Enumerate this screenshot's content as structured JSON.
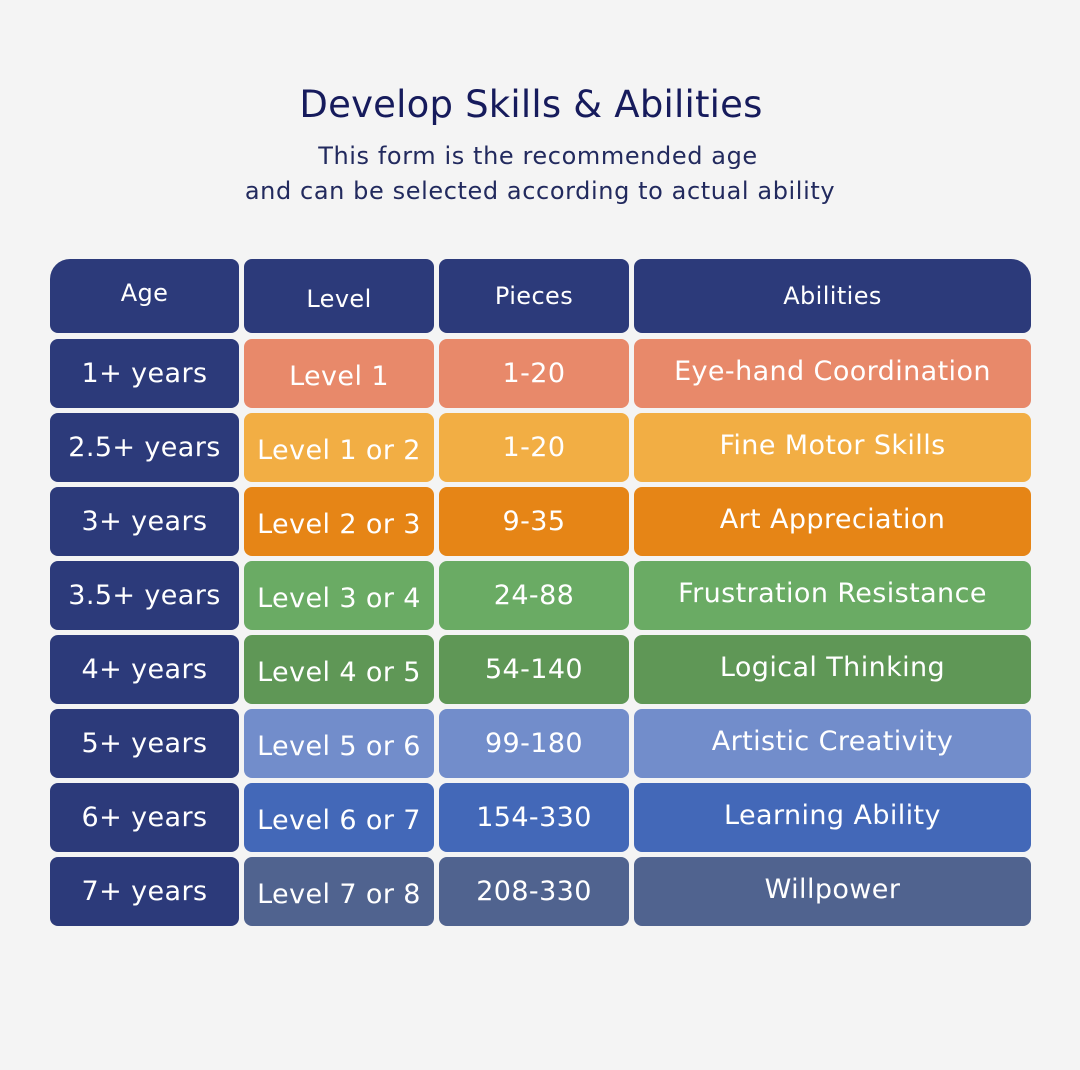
{
  "header": {
    "title": "Develop Skills & Abilities",
    "subtitle_line1": "This form is the recommended age",
    "subtitle_line2": "and can be  selected according to actual ability"
  },
  "table": {
    "columns": [
      "Age",
      "Level",
      "Pieces",
      "Abilities"
    ],
    "rows": [
      {
        "age": "1+ years",
        "level": "Level 1",
        "pieces": "1-20",
        "ability": "Eye-hand Coordination",
        "color": "#e8896a"
      },
      {
        "age": "2.5+ years",
        "level": "Level 1 or 2",
        "pieces": "1-20",
        "ability": "Fine Motor Skills",
        "color": "#f2ae44"
      },
      {
        "age": "3+ years",
        "level": "Level 2 or 3",
        "pieces": "9-35",
        "ability": "Art Appreciation",
        "color": "#e68516"
      },
      {
        "age": "3.5+ years",
        "level": "Level 3 or 4",
        "pieces": "24-88",
        "ability": "Frustration Resistance",
        "color": "#6aab64"
      },
      {
        "age": "4+ years",
        "level": "Level 4 or 5",
        "pieces": "54-140",
        "ability": "Logical Thinking",
        "color": "#5f9756"
      },
      {
        "age": "5+ years",
        "level": "Level 5 or 6",
        "pieces": "99-180",
        "ability": "Artistic Creativity",
        "color": "#728dcb"
      },
      {
        "age": "6+ years",
        "level": "Level 6 or 7",
        "pieces": "154-330",
        "ability": "Learning Ability",
        "color": "#4368b8"
      },
      {
        "age": "7+ years",
        "level": "Level 7 or 8",
        "pieces": "208-330",
        "ability": "Willpower",
        "color": "#50638f"
      }
    ],
    "header_color": "#2c3a7a",
    "age_color": "#2c3a7a"
  }
}
